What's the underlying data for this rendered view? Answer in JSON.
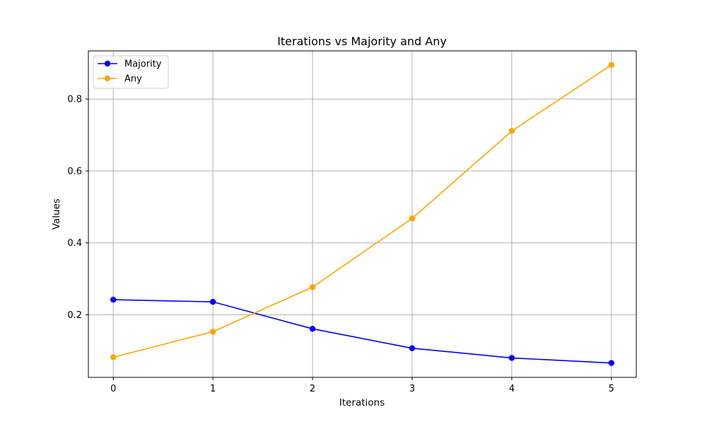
{
  "chart_data": {
    "type": "line",
    "title": "Iterations vs Majority and Any",
    "xlabel": "Iterations",
    "ylabel": "Values",
    "x": [
      0,
      1,
      2,
      3,
      4,
      5
    ],
    "xlim": [
      -0.25,
      5.25
    ],
    "ylim": [
      0.026,
      0.934
    ],
    "xticks": [
      "0",
      "1",
      "2",
      "3",
      "4",
      "5"
    ],
    "yticks": [
      "0.2",
      "0.4",
      "0.6",
      "0.8"
    ],
    "ytick_values": [
      0.2,
      0.4,
      0.6,
      0.8
    ],
    "grid": true,
    "legend_position": "top-left",
    "series": [
      {
        "name": "Majority",
        "color": "#0000ff",
        "marker": "circle",
        "values": [
          0.242,
          0.236,
          0.161,
          0.107,
          0.08,
          0.066
        ]
      },
      {
        "name": "Any",
        "color": "#ffa500",
        "marker": "circle",
        "values": [
          0.082,
          0.153,
          0.277,
          0.468,
          0.711,
          0.895
        ]
      }
    ]
  }
}
